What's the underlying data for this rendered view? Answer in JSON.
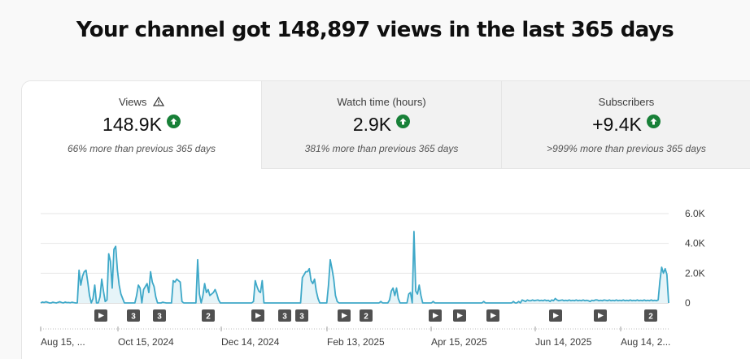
{
  "headline": "Your channel got 148,897 views in the last 365 days",
  "tabs": [
    {
      "label": "Views",
      "value": "148.9K",
      "note": "66% more than previous 365 days",
      "warning": true
    },
    {
      "label": "Watch time (hours)",
      "value": "2.9K",
      "note": "381% more than previous 365 days"
    },
    {
      "label": "Subscribers",
      "value": "+9.4K",
      "note": ">999% more than previous 365 days"
    }
  ],
  "colors": {
    "accent": "#3ea8c8",
    "trend_up": "#188038",
    "fill": "#e6f4f8"
  },
  "chart_data": {
    "type": "area",
    "x_tick_labels": [
      "Aug 15, ...",
      "Oct 15, 2024",
      "Dec 14, 2024",
      "Feb 13, 2025",
      "Apr 15, 2025",
      "Jun 14, 2025",
      "Aug 14, 2..."
    ],
    "y_tick_labels": [
      "6.0K",
      "4.0K",
      "2.0K",
      "0"
    ],
    "ylim": [
      0,
      6000
    ],
    "grid": true,
    "y_axis_side": "right",
    "series": [
      {
        "values": [
          0,
          60,
          30,
          80,
          40,
          0,
          0,
          50,
          20,
          0,
          40,
          80,
          30,
          0,
          60,
          20,
          30,
          10,
          50,
          20,
          0,
          0,
          2200,
          1200,
          1800,
          2100,
          2200,
          1400,
          500,
          0,
          300,
          1200,
          0,
          0,
          400,
          1600,
          800,
          100,
          200,
          3300,
          2800,
          1000,
          3600,
          3800,
          2200,
          1200,
          600,
          300,
          0,
          0,
          0,
          0,
          0,
          0,
          0,
          500,
          1200,
          1000,
          0,
          900,
          1100,
          1300,
          700,
          2100,
          1400,
          1100,
          400,
          0,
          0,
          0,
          50,
          20,
          0,
          0,
          0,
          0,
          1500,
          1400,
          1600,
          1500,
          1400,
          100,
          0,
          0,
          0,
          0,
          0,
          0,
          0,
          0,
          2900,
          600,
          0,
          500,
          1300,
          700,
          900,
          500,
          600,
          700,
          900,
          600,
          200,
          0,
          0,
          0,
          0,
          0,
          0,
          0,
          0,
          0,
          0,
          0,
          0,
          0,
          0,
          0,
          0,
          0,
          0,
          0,
          100,
          1500,
          1100,
          800,
          700,
          1500,
          0,
          0,
          0,
          0,
          0,
          0,
          0,
          0,
          0,
          0,
          0,
          0,
          0,
          0,
          0,
          0,
          0,
          0,
          0,
          0,
          0,
          0,
          1700,
          1900,
          2100,
          2100,
          2300,
          1500,
          1300,
          1600,
          800,
          300,
          0,
          0,
          0,
          0,
          0,
          1200,
          2900,
          2300,
          1600,
          500,
          100,
          0,
          0,
          0,
          0,
          0,
          0,
          0,
          0,
          0,
          0,
          0,
          0,
          0,
          0,
          0,
          0,
          0,
          0,
          0,
          0,
          0,
          0,
          0,
          0,
          100,
          0,
          0,
          0,
          0,
          200,
          800,
          1000,
          500,
          1000,
          300,
          0,
          0,
          0,
          0,
          0,
          600,
          700,
          0,
          4800,
          800,
          600,
          1200,
          500,
          0,
          0,
          0,
          0,
          0,
          0,
          100,
          0,
          0,
          0,
          0,
          0,
          0,
          0,
          0,
          0,
          0,
          0,
          0,
          0,
          0,
          0,
          0,
          0,
          0,
          0,
          0,
          0,
          0,
          0,
          0,
          0,
          0,
          0,
          0,
          100,
          0,
          0,
          0,
          0,
          0,
          0,
          0,
          0,
          0,
          0,
          0,
          0,
          0,
          0,
          0,
          0,
          100,
          0,
          0,
          100,
          0,
          200,
          150,
          100,
          200,
          150,
          150,
          200,
          150,
          180,
          200,
          150,
          180,
          150,
          200,
          150,
          180,
          100,
          200,
          150,
          300,
          200,
          150,
          180,
          200,
          150,
          180,
          150,
          200,
          150,
          180,
          150,
          200,
          150,
          180,
          150,
          200,
          150,
          180,
          150,
          100,
          180,
          150,
          200,
          200,
          150,
          180,
          150,
          200,
          180,
          150,
          200,
          150,
          180,
          150,
          200,
          150,
          180,
          150,
          200,
          150,
          180,
          150,
          200,
          150,
          180,
          150,
          200,
          150,
          180,
          150,
          200,
          150,
          180,
          150,
          200,
          150,
          180,
          150,
          200,
          1500,
          2400,
          2000,
          2300,
          1900,
          0
        ]
      }
    ],
    "markers": [
      {
        "type": "play"
      },
      {
        "type": "count",
        "label": "3"
      },
      {
        "type": "count",
        "label": "3"
      },
      {
        "type": "count",
        "label": "2"
      },
      {
        "type": "play"
      },
      {
        "type": "count",
        "label": "3"
      },
      {
        "type": "count",
        "label": "3"
      },
      {
        "type": "play"
      },
      {
        "type": "count",
        "label": "2"
      },
      {
        "type": "play"
      },
      {
        "type": "play"
      },
      {
        "type": "play"
      },
      {
        "type": "play"
      },
      {
        "type": "play"
      },
      {
        "type": "count",
        "label": "2"
      }
    ]
  }
}
